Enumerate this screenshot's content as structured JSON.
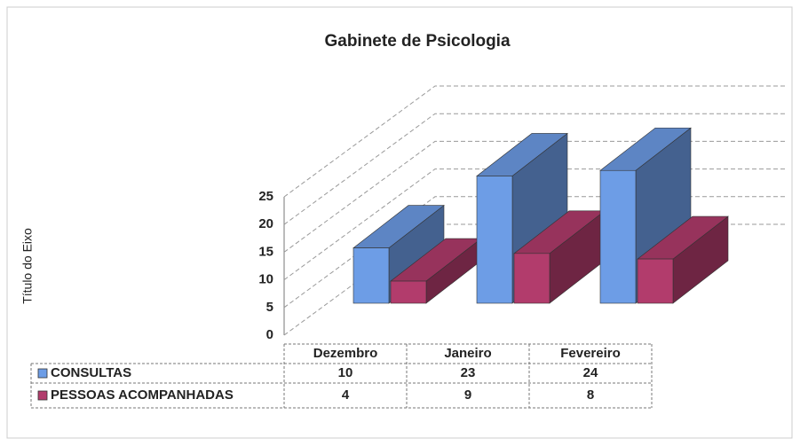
{
  "chart_data": {
    "type": "bar3d",
    "title": "Gabinete de Psicologia",
    "y_axis_label": "Título do Eixo",
    "categories": [
      "Dezembro",
      "Janeiro",
      "Fevereiro"
    ],
    "series": [
      {
        "name": "CONSULTAS",
        "color": "#6d9de6",
        "values": [
          10,
          23,
          24
        ]
      },
      {
        "name": "PESSOAS ACOMPANHADAS",
        "color": "#b23c6c",
        "values": [
          4,
          9,
          8
        ]
      }
    ],
    "ylim": [
      0,
      25
    ],
    "yticks": [
      0,
      5,
      10,
      15,
      20,
      25
    ],
    "grid": true,
    "data_table": true
  }
}
